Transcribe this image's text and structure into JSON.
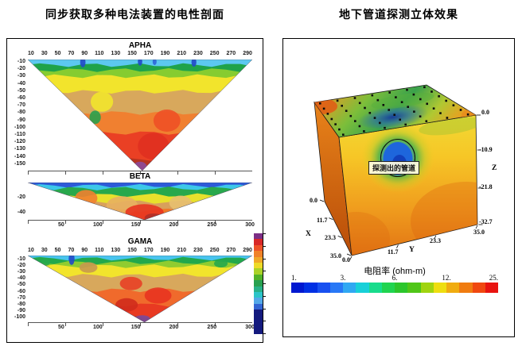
{
  "page": {
    "background": "#ffffff"
  },
  "left_panel": {
    "title": "同步获取多种电法装置的电性剖面",
    "vertical_colorbar": {
      "colors": [
        "#7c2f86",
        "#d82828",
        "#ee5228",
        "#f08228",
        "#f0a828",
        "#eeda28",
        "#aad228",
        "#52b228",
        "#28a050",
        "#28b088",
        "#2cc4c8",
        "#54a8e8",
        "#3264d2",
        "#141a7e"
      ]
    }
  },
  "right_panel": {
    "title": "地下管道探测立体效果",
    "annotation": "探测出的管道",
    "axes": {
      "x": {
        "label": "X",
        "ticks": [
          "0.0",
          "11.7",
          "23.3",
          "35.0"
        ]
      },
      "y": {
        "label": "Y",
        "ticks": [
          "0.0",
          "11.7",
          "23.3",
          "35.0"
        ]
      },
      "z": {
        "label": "Z",
        "ticks": [
          "0.0",
          "-10.9",
          "-21.8",
          "-32.7"
        ]
      }
    },
    "colorbar": {
      "title": "电阻率 (ohm-m)",
      "tick_labels": [
        "1.",
        "3.",
        "6.",
        "12.",
        "25."
      ],
      "tick_values": [
        1,
        3,
        6,
        12,
        25
      ],
      "scale": "log",
      "colors": [
        "#0018d0",
        "#0030e4",
        "#1850f0",
        "#2878f6",
        "#30a8f2",
        "#18d0d8",
        "#18dc8c",
        "#20d450",
        "#2cc62c",
        "#50c618",
        "#a0d410",
        "#eede10",
        "#f0ac10",
        "#f07c10",
        "#f04810",
        "#e81410"
      ]
    }
  },
  "chart_data": [
    {
      "type": "heatmap",
      "title": "APHA",
      "x_ticks": [
        "10",
        "30",
        "50",
        "70",
        "90",
        "110",
        "130",
        "150",
        "170",
        "190",
        "210",
        "230",
        "250",
        "270",
        "290"
      ],
      "y_ticks": [
        "-10",
        "-20",
        "-30",
        "-40",
        "-50",
        "-60",
        "-70",
        "-80",
        "-90",
        "-100",
        "-110",
        "-120",
        "-130",
        "-140",
        "-150"
      ],
      "x_range": [
        0,
        300
      ],
      "depth_range": [
        0,
        -155
      ],
      "tip_frac": 0.51,
      "bands": [
        {
          "to": 0.05,
          "color": "#5cc8f0"
        },
        {
          "to": 0.095,
          "color": "#1fa34a"
        },
        {
          "to": 0.15,
          "color": "#86cc30"
        },
        {
          "to": 0.29,
          "color": "#f2e42c"
        },
        {
          "to": 0.48,
          "color": "#d8a85c"
        },
        {
          "to": 0.66,
          "color": "#f08030"
        },
        {
          "to": 0.9,
          "color": "#ea4024"
        },
        {
          "to": 1.0,
          "color": "#b83420"
        }
      ],
      "blobs": [
        {
          "x": 0.245,
          "y": 0.025,
          "rx": 0.012,
          "ry": 0.045,
          "color": "#2149c8"
        },
        {
          "x": 0.5,
          "y": 0.02,
          "rx": 0.01,
          "ry": 0.035,
          "color": "#2149c8"
        },
        {
          "x": 0.565,
          "y": 0.02,
          "rx": 0.009,
          "ry": 0.03,
          "color": "#2d66d8"
        },
        {
          "x": 0.74,
          "y": 0.025,
          "rx": 0.011,
          "ry": 0.04,
          "color": "#2149c8"
        },
        {
          "x": 0.33,
          "y": 0.38,
          "rx": 0.05,
          "ry": 0.09,
          "color": "#f2e42c"
        },
        {
          "x": 0.3,
          "y": 0.52,
          "rx": 0.025,
          "ry": 0.06,
          "color": "#28a04c"
        },
        {
          "x": 0.62,
          "y": 0.55,
          "rx": 0.06,
          "ry": 0.1,
          "color": "#ee5026"
        },
        {
          "x": 0.56,
          "y": 0.78,
          "rx": 0.07,
          "ry": 0.12,
          "color": "#e03020"
        },
        {
          "x": 0.5,
          "y": 0.965,
          "rx": 0.03,
          "ry": 0.045,
          "color": "#8b4a9b"
        }
      ]
    },
    {
      "type": "heatmap",
      "title": "BETA",
      "y_ticks": [
        "-20",
        "-40"
      ],
      "x_ticks_bottom": [
        "50",
        "100",
        "150",
        "200",
        "250",
        "300"
      ],
      "x_range": [
        0,
        305
      ],
      "depth_range": [
        0,
        -50
      ],
      "tip_frac": 0.52,
      "bands": [
        {
          "to": 0.09,
          "color": "#2d5ad8"
        },
        {
          "to": 0.16,
          "color": "#3cc8e8"
        },
        {
          "to": 0.34,
          "color": "#28a84c"
        },
        {
          "to": 0.52,
          "color": "#e8e02c"
        },
        {
          "to": 0.74,
          "color": "#d8a05c"
        },
        {
          "to": 1.0,
          "color": "#f07828"
        }
      ],
      "blobs": [
        {
          "x": 0.26,
          "y": 0.42,
          "rx": 0.05,
          "ry": 0.22,
          "color": "#f08030"
        },
        {
          "x": 0.42,
          "y": 0.62,
          "rx": 0.07,
          "ry": 0.25,
          "color": "#e8b060"
        },
        {
          "x": 0.68,
          "y": 0.55,
          "rx": 0.05,
          "ry": 0.2,
          "color": "#e8c070"
        },
        {
          "x": 0.52,
          "y": 0.8,
          "rx": 0.085,
          "ry": 0.22,
          "color": "#e83420"
        },
        {
          "x": 0.56,
          "y": 0.95,
          "rx": 0.04,
          "ry": 0.12,
          "color": "#b03028"
        }
      ]
    },
    {
      "type": "heatmap",
      "title": "GAMA",
      "x_ticks": [
        "10",
        "30",
        "50",
        "70",
        "90",
        "110",
        "130",
        "150",
        "170",
        "190",
        "210",
        "230",
        "250",
        "270",
        "290"
      ],
      "y_ticks": [
        "-10",
        "-20",
        "-30",
        "-40",
        "-50",
        "-60",
        "-70",
        "-80",
        "-90",
        "-100"
      ],
      "x_ticks_bottom": [
        "50",
        "100",
        "150",
        "200",
        "250",
        "300"
      ],
      "x_range": [
        0,
        305
      ],
      "depth_range": [
        0,
        -105
      ],
      "tip_frac": 0.52,
      "bands": [
        {
          "to": 0.048,
          "color": "#48c4ee"
        },
        {
          "to": 0.105,
          "color": "#22a84c"
        },
        {
          "to": 0.16,
          "color": "#90cc30"
        },
        {
          "to": 0.3,
          "color": "#f2e42c"
        },
        {
          "to": 0.52,
          "color": "#d8a85c"
        },
        {
          "to": 0.74,
          "color": "#f06a2c"
        },
        {
          "to": 0.92,
          "color": "#e83a22"
        },
        {
          "to": 1.0,
          "color": "#a83426"
        }
      ],
      "blobs": [
        {
          "x": 0.195,
          "y": 0.05,
          "rx": 0.013,
          "ry": 0.09,
          "color": "#2149c8"
        },
        {
          "x": 0.08,
          "y": 0.1,
          "rx": 0.02,
          "ry": 0.05,
          "color": "#28a84c"
        },
        {
          "x": 0.86,
          "y": 0.12,
          "rx": 0.03,
          "ry": 0.06,
          "color": "#28a84c"
        },
        {
          "x": 0.27,
          "y": 0.18,
          "rx": 0.04,
          "ry": 0.08,
          "color": "#c89850"
        },
        {
          "x": 0.46,
          "y": 0.42,
          "rx": 0.05,
          "ry": 0.1,
          "color": "#e84026"
        },
        {
          "x": 0.58,
          "y": 0.6,
          "rx": 0.06,
          "ry": 0.12,
          "color": "#e83420"
        },
        {
          "x": 0.44,
          "y": 0.74,
          "rx": 0.05,
          "ry": 0.1,
          "color": "#d02c1c"
        },
        {
          "x": 0.51,
          "y": 0.95,
          "rx": 0.035,
          "ry": 0.055,
          "color": "#7a4a9b"
        }
      ]
    },
    {
      "type": "3d-volume",
      "title": "地下管道探测立体效果",
      "resistivity_unit": "ohm-m",
      "colorbar_values": [
        1,
        3,
        6,
        12,
        25
      ],
      "x_ticks": [
        0,
        11.7,
        23.3,
        35.0
      ],
      "y_ticks": [
        0,
        11.7,
        23.3,
        35.0
      ],
      "z_ticks": [
        0,
        -10.9,
        -21.8,
        -32.7
      ],
      "electrode_grid": {
        "rows": 7,
        "cols": 7
      },
      "anomaly_label": "探测出的管道",
      "palette": {
        "top_face": [
          "#e0761e",
          "#d8a028",
          "#7cbe3a",
          "#3aa24c",
          "#b0c832",
          "#e8a020"
        ],
        "top_anomaly": "#16389b",
        "front_face": [
          "#f2da34",
          "#f6c626",
          "#f09e1e",
          "#e27414"
        ],
        "front_anomaly": [
          "#1c55d2",
          "#1e66dc",
          "#1240bc"
        ],
        "left_face": [
          "#e8831a",
          "#b84c08"
        ]
      }
    }
  ]
}
